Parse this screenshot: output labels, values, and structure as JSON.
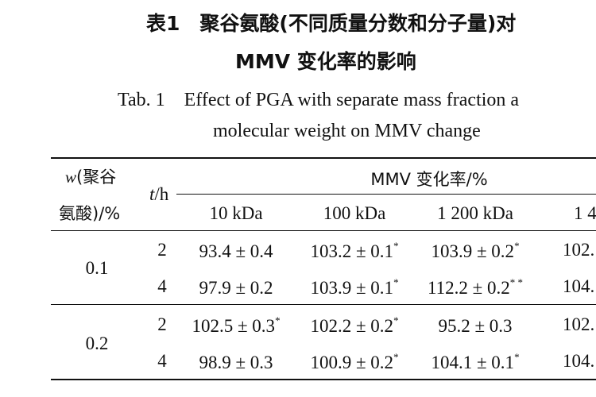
{
  "title": {
    "cn_line1": "表1　聚谷氨酸(不同质量分数和分子量)对",
    "cn_line2": "MMV 变化率的影响",
    "en_line1": "Tab. 1　Effect of PGA with separate mass fraction a",
    "en_line2": "molecular weight on MMV change"
  },
  "header": {
    "w_label_a": "w",
    "w_label_b": "(聚谷",
    "w_label_c": "氨酸)/%",
    "t_label_a": "t",
    "t_label_b": "/h",
    "group_label": "MMV 变化率/%",
    "columns": [
      "10 kDa",
      "100 kDa",
      "1 200 kDa",
      "1 4"
    ]
  },
  "rows": [
    {
      "w": "0.1",
      "t": "2",
      "v": [
        "93.4 ± 0.4",
        "103.2 ± 0.1",
        "103.9 ± 0.2",
        "102."
      ],
      "s": [
        "",
        "*",
        "*",
        ""
      ]
    },
    {
      "w": "",
      "t": "4",
      "v": [
        "97.9 ± 0.2",
        "103.9 ± 0.1",
        "112.2 ± 0.2",
        "104."
      ],
      "s": [
        "",
        "*",
        "* *",
        ""
      ]
    },
    {
      "w": "0.2",
      "t": "2",
      "v": [
        "102.5 ± 0.3",
        "102.2 ± 0.2",
        "95.2 ± 0.3",
        "102."
      ],
      "s": [
        "*",
        "*",
        "",
        ""
      ]
    },
    {
      "w": "",
      "t": "4",
      "v": [
        "98.9 ± 0.3",
        "100.9 ± 0.2",
        "104.1 ± 0.1",
        "104."
      ],
      "s": [
        "",
        "*",
        "*",
        ""
      ]
    }
  ]
}
